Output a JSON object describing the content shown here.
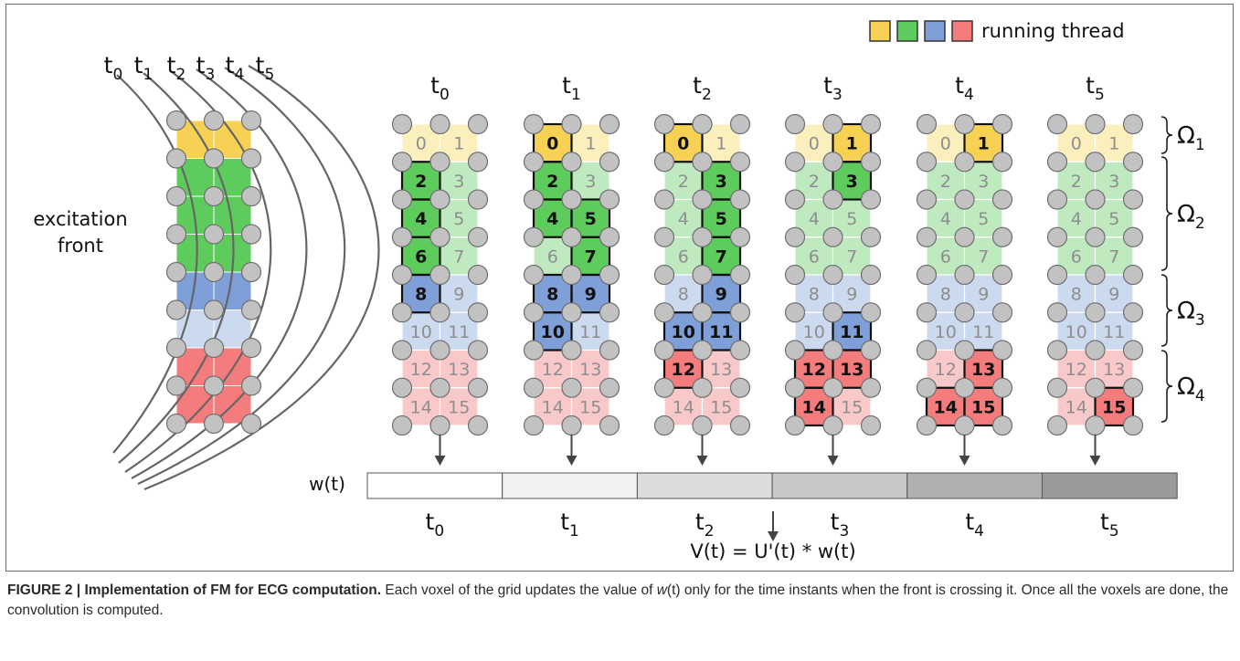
{
  "figure": {
    "legend_label": "running thread",
    "legend_colors": [
      "#f7d154",
      "#5dcc5d",
      "#7f9fd8",
      "#f47c7c"
    ],
    "left_panel": {
      "front_labels": [
        {
          "base": "t",
          "sub": "0"
        },
        {
          "base": "t",
          "sub": "1"
        },
        {
          "base": "t",
          "sub": "2"
        },
        {
          "base": "t",
          "sub": "3"
        },
        {
          "base": "t",
          "sub": "4"
        },
        {
          "base": "t",
          "sub": "5"
        }
      ],
      "excitation_label_line1": "excitation",
      "excitation_label_line2": "front"
    },
    "colors": {
      "yellow_light": "#fcefbe",
      "yellow_dark": "#f7d154",
      "green_light": "#bfe9bf",
      "green_dark": "#5dcc5d",
      "blue_light": "#ccdaf0",
      "blue_dark": "#7f9fd8",
      "red_light": "#f9c8c8",
      "red_dark": "#f47c7c",
      "node_fill": "#c2c2c2",
      "node_stroke": "#6f6f6f"
    },
    "voxel_numbers": [
      "0",
      "1",
      "2",
      "3",
      "4",
      "5",
      "6",
      "7",
      "8",
      "9",
      "10",
      "11",
      "12",
      "13",
      "14",
      "15"
    ],
    "time_steps": [
      {
        "label": {
          "base": "t",
          "sub": "0"
        },
        "active": [
          2,
          4,
          6,
          8
        ]
      },
      {
        "label": {
          "base": "t",
          "sub": "1"
        },
        "active": [
          0,
          2,
          4,
          5,
          7,
          8,
          9,
          10
        ]
      },
      {
        "label": {
          "base": "t",
          "sub": "2"
        },
        "active": [
          0,
          3,
          5,
          7,
          9,
          10,
          11,
          12
        ]
      },
      {
        "label": {
          "base": "t",
          "sub": "3"
        },
        "active": [
          1,
          3,
          11,
          12,
          13,
          14
        ]
      },
      {
        "label": {
          "base": "t",
          "sub": "4"
        },
        "active": [
          1,
          13,
          14,
          15
        ]
      },
      {
        "label": {
          "base": "t",
          "sub": "5"
        },
        "active": [
          15
        ]
      }
    ],
    "regions": [
      {
        "name": "Ω",
        "sub": "1"
      },
      {
        "name": "Ω",
        "sub": "2"
      },
      {
        "name": "Ω",
        "sub": "3"
      },
      {
        "name": "Ω",
        "sub": "4"
      }
    ],
    "w_bar": {
      "label": "w(t)",
      "segment_colors": [
        "#ffffff",
        "#f1f1f1",
        "#dcdcdc",
        "#c8c8c8",
        "#b0b0b0",
        "#9a9a9a"
      ],
      "segment_labels": [
        {
          "base": "t",
          "sub": "0"
        },
        {
          "base": "t",
          "sub": "1"
        },
        {
          "base": "t",
          "sub": "2"
        },
        {
          "base": "t",
          "sub": "3"
        },
        {
          "base": "t",
          "sub": "4"
        },
        {
          "base": "t",
          "sub": "5"
        }
      ]
    },
    "formula": "V(t) = U'(t) * w(t)"
  },
  "caption": {
    "label": "FIGURE 2 |",
    "title": "Implementation of FM for ECG computation.",
    "text_part1": "Each voxel of the grid updates the value of",
    "text_var": "w",
    "text_var_arg": "(t)",
    "text_part2": "only for the time instants when the front is crossing it. Once all the voxels are done, the convolution is computed."
  }
}
